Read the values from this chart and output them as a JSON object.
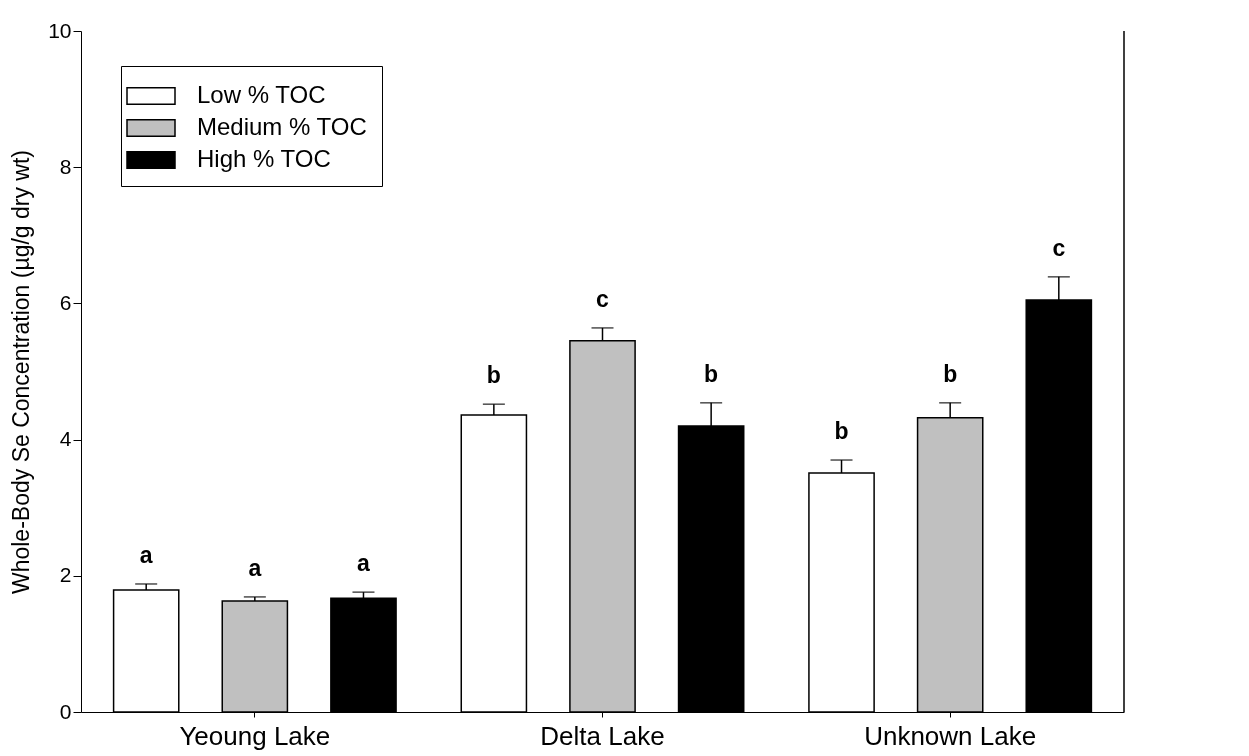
{
  "chart_data": {
    "type": "bar",
    "ylabel": "Whole-Body Se Concentration (µg/g dry wt)",
    "categories": [
      "Yeoung Lake",
      "Delta Lake",
      "Unknown Lake"
    ],
    "series": [
      {
        "name": "Low % TOC",
        "color": "#ffffff",
        "values": [
          1.79,
          4.36,
          3.51
        ],
        "errors": [
          0.09,
          0.16,
          0.19
        ]
      },
      {
        "name": "Medium % TOC",
        "color": "#c0c0c0",
        "values": [
          1.63,
          5.45,
          4.32
        ],
        "errors": [
          0.06,
          0.19,
          0.22
        ]
      },
      {
        "name": "High % TOC",
        "color": "#000000",
        "values": [
          1.67,
          4.2,
          6.05
        ],
        "errors": [
          0.09,
          0.34,
          0.34
        ]
      }
    ],
    "annotations": [
      "a",
      "a",
      "a",
      "b",
      "c",
      "b",
      "b",
      "b",
      "c"
    ],
    "ylim": [
      0,
      10
    ],
    "yticks": [
      0,
      2,
      4,
      6,
      8,
      10
    ],
    "grid": false,
    "legend": "top left"
  }
}
